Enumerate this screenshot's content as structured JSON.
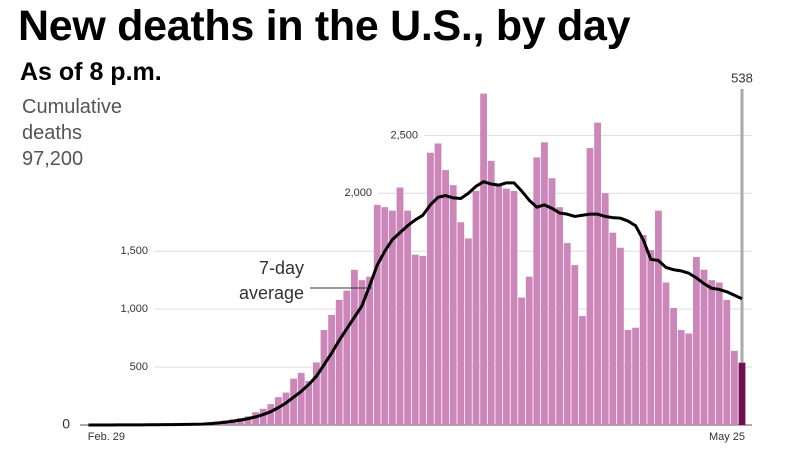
{
  "chart_data": {
    "type": "bar",
    "title": "New deaths in the U.S., by day",
    "subtitle": "As of 8 p.m.",
    "cumulative_label": "Cumulative deaths",
    "cumulative_value": "97,200",
    "categories": [
      "Feb. 29",
      null,
      null,
      null,
      null,
      null,
      null,
      null,
      null,
      null,
      null,
      null,
      null,
      null,
      null,
      null,
      null,
      null,
      null,
      null,
      null,
      null,
      null,
      null,
      null,
      null,
      null,
      null,
      null,
      null,
      null,
      null,
      null,
      null,
      null,
      null,
      null,
      null,
      null,
      null,
      null,
      null,
      null,
      null,
      null,
      null,
      null,
      null,
      null,
      null,
      null,
      null,
      null,
      null,
      null,
      null,
      null,
      null,
      null,
      null,
      null,
      null,
      null,
      null,
      null,
      null,
      null,
      null,
      null,
      null,
      null,
      null,
      null,
      null,
      null,
      null,
      null,
      null,
      null,
      null,
      null,
      null,
      null,
      null,
      null,
      null,
      "May 25"
    ],
    "values": [
      0,
      0,
      0,
      1,
      1,
      2,
      1,
      2,
      3,
      4,
      5,
      4,
      8,
      9,
      12,
      15,
      22,
      30,
      40,
      50,
      60,
      75,
      110,
      140,
      180,
      240,
      280,
      400,
      450,
      380,
      540,
      820,
      950,
      1080,
      1160,
      1340,
      1250,
      1280,
      1900,
      1880,
      1850,
      2050,
      1850,
      1470,
      1460,
      2350,
      2430,
      2200,
      2070,
      1750,
      1610,
      2020,
      2860,
      2280,
      2070,
      2040,
      2020,
      1100,
      1280,
      2310,
      2440,
      2130,
      1880,
      1570,
      1380,
      940,
      2390,
      2610,
      2000,
      1660,
      1530,
      820,
      840,
      1640,
      1510,
      1850,
      1230,
      1010,
      820,
      790,
      1450,
      1340,
      1250,
      1230,
      1080,
      640,
      538
    ],
    "color": "#cc86b9",
    "highlight_color": "#6e0f52",
    "series": [
      {
        "name": "7-day average",
        "color": "#000000",
        "values": [
          0,
          0,
          0,
          0,
          1,
          1,
          1,
          1,
          2,
          2,
          3,
          3,
          4,
          5,
          6,
          8,
          12,
          17,
          24,
          32,
          42,
          55,
          70,
          90,
          115,
          150,
          190,
          240,
          290,
          350,
          420,
          520,
          620,
          730,
          830,
          930,
          1030,
          1200,
          1380,
          1500,
          1600,
          1660,
          1720,
          1770,
          1810,
          1900,
          1965,
          1980,
          1960,
          1955,
          2000,
          2060,
          2100,
          2080,
          2070,
          2090,
          2090,
          2020,
          1940,
          1880,
          1900,
          1870,
          1830,
          1820,
          1800,
          1810,
          1820,
          1820,
          1800,
          1790,
          1785,
          1760,
          1720,
          1600,
          1430,
          1420,
          1360,
          1340,
          1330,
          1310,
          1270,
          1220,
          1180,
          1170,
          1150,
          1120,
          1090
        ]
      }
    ],
    "ylim": [
      0,
      2900
    ],
    "yticks": [
      0,
      500,
      {
        "value": 1000,
        "label": "1,000"
      },
      {
        "value": 1500,
        "label": "1,500"
      },
      {
        "value": 2000,
        "label": "2,000"
      },
      {
        "value": 2500,
        "label": "2,500"
      }
    ],
    "grid": true
  }
}
